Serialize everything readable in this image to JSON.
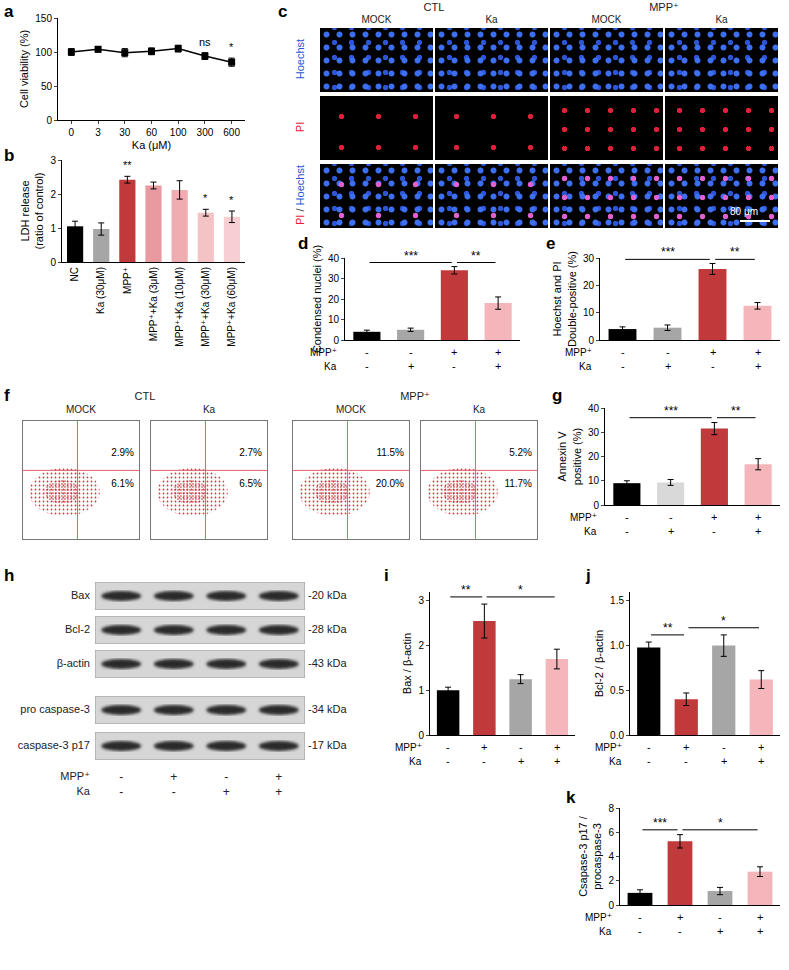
{
  "chart_data": [
    {
      "panel": "a",
      "type": "line",
      "categories": [
        "0",
        "3",
        "30",
        "60",
        "100",
        "300",
        "600"
      ],
      "values": [
        100,
        104,
        99,
        101,
        105,
        94,
        85
      ],
      "errors": [
        5,
        4,
        6,
        5,
        5,
        5,
        6
      ],
      "color": "#000000",
      "marker": "square",
      "x_label": "Ka (μM)",
      "y_label": "Cell viability (%)",
      "ylim": [
        0,
        150
      ],
      "yticks": [
        0,
        50,
        100,
        150
      ],
      "annotations": [
        {
          "text": "ns",
          "at": 5
        },
        {
          "text": "*",
          "at": 6
        }
      ]
    },
    {
      "panel": "b",
      "type": "bar",
      "categories": [
        "NC",
        "Ka (30μM)",
        "MPP⁺",
        "MPP⁺+Ka (3μM)",
        "MPP⁺+Ka (10μM)",
        "MPP⁺+Ka (30μM)",
        "MPP⁺+Ka (60μM)"
      ],
      "values": [
        1.05,
        0.97,
        2.42,
        2.25,
        2.12,
        1.45,
        1.33
      ],
      "errors": [
        0.15,
        0.18,
        0.1,
        0.1,
        0.27,
        0.1,
        0.17
      ],
      "colors": [
        "#000000",
        "#a6a6a6",
        "#c0393b",
        "#e99aa0",
        "#efadb2",
        "#f4c3c6",
        "#f7cfd2"
      ],
      "y_label": "LDH release\n(ratio of control)",
      "ylim": [
        0,
        3
      ],
      "yticks": [
        0,
        1,
        2,
        3
      ],
      "annotations": [
        {
          "text": "**",
          "at": 2
        },
        {
          "text": "*",
          "at": 5
        },
        {
          "text": "*",
          "at": 6
        }
      ]
    },
    {
      "panel": "d",
      "type": "bar",
      "categories": [
        null,
        null,
        null,
        null
      ],
      "x_rows": [
        {
          "label": "MPP⁺",
          "values": [
            "-",
            "-",
            "+",
            "+"
          ]
        },
        {
          "label": "Ka",
          "values": [
            "-",
            "+",
            "-",
            "+"
          ]
        }
      ],
      "values": [
        4,
        5,
        34,
        18
      ],
      "errors": [
        0.8,
        0.8,
        1.8,
        3
      ],
      "colors": [
        "#000000",
        "#a6a6a6",
        "#c0393b",
        "#f4b6ba"
      ],
      "y_label": "Condensed nuclei (%)",
      "ylim": [
        0,
        40
      ],
      "yticks": [
        0,
        10,
        20,
        30,
        40
      ],
      "annotations": [
        {
          "text": "***",
          "from": 0,
          "to": 2
        },
        {
          "text": "**",
          "from": 2,
          "to": 3
        }
      ]
    },
    {
      "panel": "e",
      "type": "bar",
      "categories": [
        null,
        null,
        null,
        null
      ],
      "x_rows": [
        {
          "label": "MPP⁺",
          "values": [
            "-",
            "-",
            "+",
            "+"
          ]
        },
        {
          "label": "Ka",
          "values": [
            "-",
            "+",
            "-",
            "+"
          ]
        }
      ],
      "values": [
        4,
        4.5,
        26,
        12.5
      ],
      "errors": [
        0.8,
        1,
        2,
        1.2
      ],
      "colors": [
        "#000000",
        "#a6a6a6",
        "#c0393b",
        "#f4b6ba"
      ],
      "y_label": "Hoechst and PI\nDouble-positive (%)",
      "ylim": [
        0,
        30
      ],
      "yticks": [
        0,
        10,
        20,
        30
      ],
      "annotations": [
        {
          "text": "***",
          "from": 0,
          "to": 2
        },
        {
          "text": "**",
          "from": 2,
          "to": 3
        }
      ]
    },
    {
      "panel": "g",
      "type": "bar",
      "categories": [
        null,
        null,
        null,
        null
      ],
      "x_rows": [
        {
          "label": "MPP⁺",
          "values": [
            "-",
            "-",
            "+",
            "+"
          ]
        },
        {
          "label": "Ka",
          "values": [
            "-",
            "+",
            "-",
            "+"
          ]
        }
      ],
      "values": [
        9,
        9.3,
        31.5,
        16.8
      ],
      "errors": [
        1,
        1.2,
        2.5,
        2.3
      ],
      "colors": [
        "#000000",
        "#d9d9d9",
        "#c0393b",
        "#f4b6ba"
      ],
      "y_label": "Annexin V\npositive (%)",
      "ylim": [
        0,
        40
      ],
      "yticks": [
        0,
        10,
        20,
        30,
        40
      ],
      "annotations": [
        {
          "text": "***",
          "from": 0,
          "to": 2
        },
        {
          "text": "**",
          "from": 2,
          "to": 3
        }
      ]
    },
    {
      "panel": "i",
      "type": "bar",
      "categories": [
        null,
        null,
        null,
        null
      ],
      "x_rows": [
        {
          "label": "MPP⁺",
          "values": [
            "-",
            "+",
            "-",
            "+"
          ]
        },
        {
          "label": "Ka",
          "values": [
            "-",
            "-",
            "+",
            "+"
          ]
        }
      ],
      "values": [
        1.0,
        2.55,
        1.25,
        1.7
      ],
      "errors": [
        0.07,
        0.38,
        0.1,
        0.22
      ],
      "colors": [
        "#000000",
        "#c0393b",
        "#a6a6a6",
        "#f4b6ba"
      ],
      "y_label": "Bax / β-actin",
      "ylim": [
        0,
        3.2
      ],
      "yticks": [
        0,
        1,
        2,
        3
      ],
      "annotations": [
        {
          "text": "**",
          "from": 0,
          "to": 1
        },
        {
          "text": "*",
          "from": 1,
          "to": 3
        }
      ]
    },
    {
      "panel": "j",
      "type": "bar",
      "categories": [
        null,
        null,
        null,
        null
      ],
      "x_rows": [
        {
          "label": "MPP⁺",
          "values": [
            "-",
            "+",
            "-",
            "+"
          ]
        },
        {
          "label": "Ka",
          "values": [
            "-",
            "-",
            "+",
            "+"
          ]
        }
      ],
      "values": [
        0.98,
        0.4,
        1.0,
        0.62
      ],
      "errors": [
        0.06,
        0.07,
        0.12,
        0.1
      ],
      "colors": [
        "#000000",
        "#c0393b",
        "#a6a6a6",
        "#f4b6ba"
      ],
      "y_label": "Bcl-2 / β-actin",
      "ylim": [
        0,
        1.6
      ],
      "yticks": [
        {
          "value": 0,
          "label": "0.0"
        },
        0.5,
        {
          "value": 1,
          "label": "1.0"
        },
        1.5
      ],
      "annotations": [
        {
          "text": "**",
          "from": 0,
          "to": 1
        },
        {
          "text": "*",
          "from": 1,
          "to": 3
        }
      ]
    },
    {
      "panel": "k",
      "type": "bar",
      "categories": [
        null,
        null,
        null,
        null
      ],
      "x_rows": [
        {
          "label": "MPP⁺",
          "values": [
            "-",
            "+",
            "-",
            "+"
          ]
        },
        {
          "label": "Ka",
          "values": [
            "-",
            "-",
            "+",
            "+"
          ]
        }
      ],
      "values": [
        1.0,
        5.25,
        1.15,
        2.75
      ],
      "errors": [
        0.25,
        0.55,
        0.3,
        0.4
      ],
      "colors": [
        "#000000",
        "#c0393b",
        "#a6a6a6",
        "#f4b6ba"
      ],
      "y_label": "Csapase-3 p17 /\nprocaspase-3",
      "ylim": [
        0,
        8
      ],
      "yticks": [
        0,
        2,
        4,
        6,
        8
      ],
      "annotations": [
        {
          "text": "***",
          "from": 0,
          "to": 1
        },
        {
          "text": "*",
          "from": 1,
          "to": 3
        }
      ]
    }
  ],
  "micrographs": {
    "panel": "c",
    "groups": [
      {
        "label": "CTL",
        "columns": [
          "MOCK",
          "Ka"
        ]
      },
      {
        "label": "MPP⁺",
        "columns": [
          "MOCK",
          "Ka"
        ]
      }
    ],
    "rows": [
      "Hoechst",
      "PI",
      "PI / Hoechst"
    ],
    "scale_bar": "80 μm"
  },
  "flow": {
    "panel": "f",
    "groups": [
      {
        "label": "CTL",
        "columns": [
          "MOCK",
          "Ka"
        ]
      },
      {
        "label": "MPP⁺",
        "columns": [
          "MOCK",
          "Ka"
        ]
      }
    ],
    "plots": [
      {
        "upper_right": "2.9%",
        "lower_right": "6.1%"
      },
      {
        "upper_right": "2.7%",
        "lower_right": "6.5%"
      },
      {
        "upper_right": "11.5%",
        "lower_right": "20.0%"
      },
      {
        "upper_right": "5.2%",
        "lower_right": "11.7%"
      }
    ]
  },
  "western": {
    "panel": "h",
    "bands": [
      {
        "label": "Bax",
        "size": "-20 kDa"
      },
      {
        "label": "Bcl-2",
        "size": "-28 kDa"
      },
      {
        "label": "β-actin",
        "size": "-43 kDa"
      },
      {
        "label": "pro caspase-3",
        "size": "-34 kDa"
      },
      {
        "label": "caspase-3 p17",
        "size": "-17 kDa"
      }
    ],
    "lanes": [
      {
        "label": "MPP⁺",
        "values": [
          "-",
          "+",
          "-",
          "+"
        ]
      },
      {
        "label": "Ka",
        "values": [
          "-",
          "-",
          "+",
          "+"
        ]
      }
    ]
  }
}
